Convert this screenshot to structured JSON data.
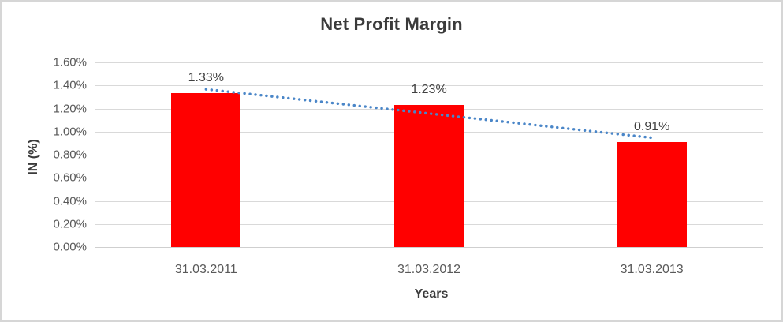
{
  "chart_data": {
    "type": "bar",
    "title": "Net Profit Margin",
    "xlabel": "Years",
    "ylabel": "IN (%)",
    "categories": [
      "31.03.2011",
      "31.03.2012",
      "31.03.2013"
    ],
    "values": [
      1.33,
      1.23,
      0.91
    ],
    "data_labels": [
      "1.33%",
      "1.23%",
      "0.91%"
    ],
    "ylim": [
      0,
      1.6
    ],
    "y_ticks": [
      {
        "value": 0.0,
        "label": "0.00%"
      },
      {
        "value": 0.2,
        "label": "0.20%"
      },
      {
        "value": 0.4,
        "label": "0.40%"
      },
      {
        "value": 0.6,
        "label": "0.60%"
      },
      {
        "value": 0.8,
        "label": "0.80%"
      },
      {
        "value": 1.0,
        "label": "1.00%"
      },
      {
        "value": 1.2,
        "label": "1.20%"
      },
      {
        "value": 1.4,
        "label": "1.40%"
      },
      {
        "value": 1.6,
        "label": "1.60%"
      }
    ],
    "grid": true,
    "legend": "none",
    "bar_color": "#ff0000",
    "gridline_color": "#d9d9d9",
    "trendline": {
      "type": "linear",
      "style": "dotted",
      "color": "#4a86c8"
    }
  }
}
